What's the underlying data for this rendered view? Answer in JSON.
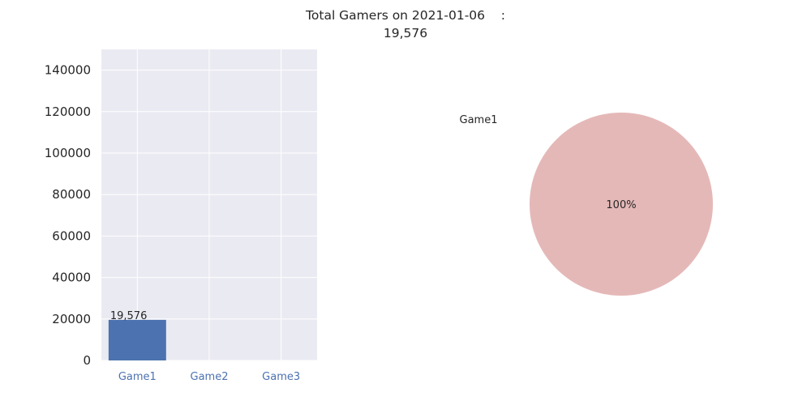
{
  "suptitle": {
    "line1": "Total Gamers on 2021-01-06    :",
    "line2": "19,576"
  },
  "chart_data": [
    {
      "type": "bar",
      "categories": [
        "Game1",
        "Game2",
        "Game3"
      ],
      "values": [
        19576,
        0,
        0
      ],
      "data_labels": [
        "19,576",
        null,
        null
      ],
      "ylim": [
        0,
        150000
      ],
      "yticks": [
        0,
        20000,
        40000,
        60000,
        80000,
        100000,
        120000,
        140000
      ],
      "ytick_labels": [
        "0",
        "20000",
        "40000",
        "60000",
        "80000",
        "100000",
        "120000",
        "140000"
      ],
      "xtick_color": "#4c72b0",
      "bar_color": "#4c72b0",
      "background": "#eaeaf2",
      "grid": true
    },
    {
      "type": "pie",
      "labels": [
        "Game1"
      ],
      "values": [
        19576
      ],
      "autopct": [
        "100%"
      ],
      "colors": [
        "#e5b8b8"
      ]
    }
  ]
}
